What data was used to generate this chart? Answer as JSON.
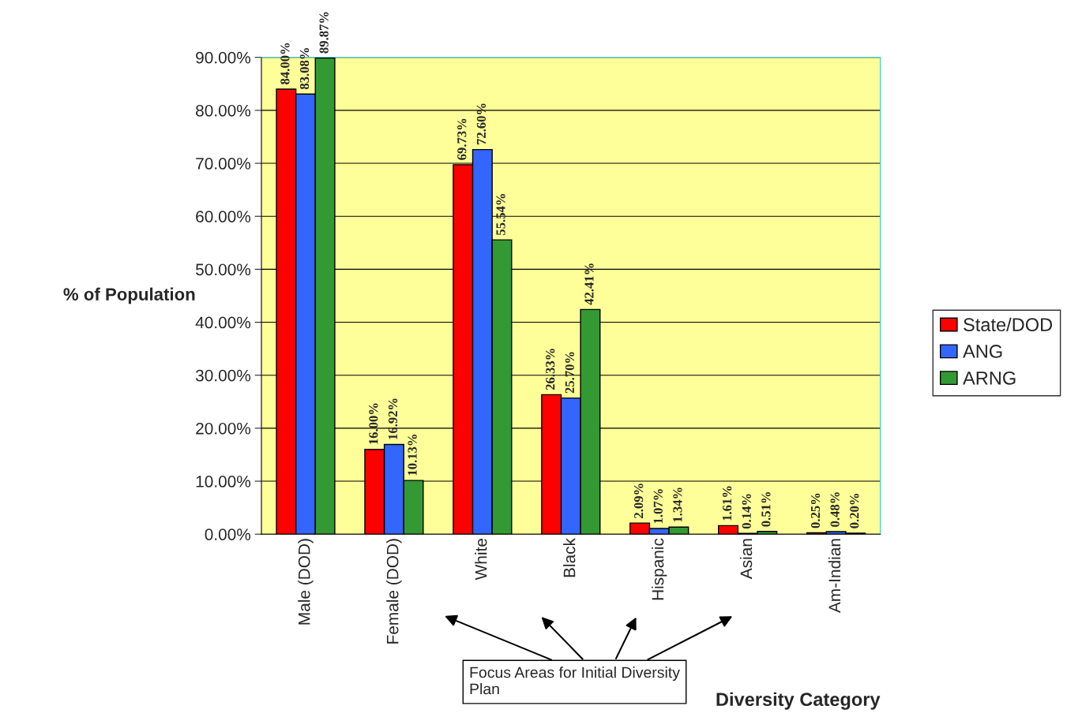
{
  "chart_data": {
    "type": "bar",
    "categories": [
      "Male (DOD)",
      "Female (DOD)",
      "White",
      "Black",
      "Hispanic",
      "Asian",
      "Am-Indian"
    ],
    "series": [
      {
        "name": "State/DOD",
        "color": "#ff0000",
        "values": [
          84.0,
          16.0,
          69.73,
          26.33,
          2.09,
          1.61,
          0.25
        ],
        "value_labels": [
          "84.00%",
          "16.00%",
          "69.73%",
          "26.33%",
          "2.09%",
          "1.61%",
          "0.25%"
        ]
      },
      {
        "name": "ANG",
        "color": "#3366ff",
        "values": [
          83.08,
          16.92,
          72.6,
          25.7,
          1.07,
          0.14,
          0.48
        ],
        "value_labels": [
          "83.08%",
          "16.92%",
          "72.60%",
          "25.70%",
          "1.07%",
          "0.14%",
          "0.48%"
        ]
      },
      {
        "name": "ARNG",
        "color": "#339933",
        "values": [
          89.87,
          10.13,
          55.54,
          42.41,
          1.34,
          0.51,
          0.2
        ],
        "value_labels": [
          "89.87%",
          "10.13%",
          "55.54%",
          "42.41%",
          "1.34%",
          "0.51%",
          "0.20%"
        ]
      }
    ],
    "xlabel": "Diversity Category",
    "ylabel": "% of Population",
    "ylim": [
      0,
      90
    ],
    "yticks": [
      {
        "value": 0,
        "label": "0.00%"
      },
      {
        "value": 10,
        "label": "10.00%"
      },
      {
        "value": 20,
        "label": "20.00%"
      },
      {
        "value": 30,
        "label": "30.00%"
      },
      {
        "value": 40,
        "label": "40.00%"
      },
      {
        "value": 50,
        "label": "50.00%"
      },
      {
        "value": 60,
        "label": "60.00%"
      },
      {
        "value": 70,
        "label": "70.00%"
      },
      {
        "value": 80,
        "label": "80.00%"
      },
      {
        "value": 90,
        "label": "90.00%"
      }
    ],
    "grid": "y",
    "legend": "right",
    "annotations": [
      "Focus Areas for Initial Diversity Plan"
    ]
  }
}
